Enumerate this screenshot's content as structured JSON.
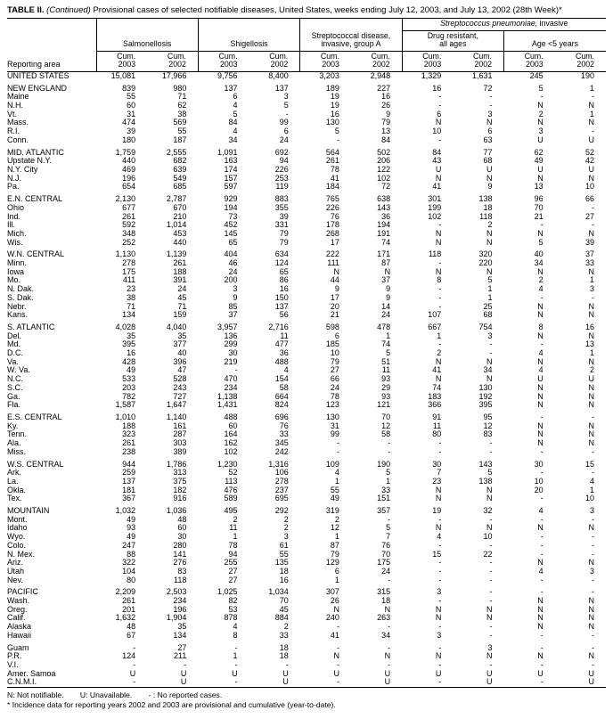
{
  "title": {
    "bold": "TABLE II.",
    "italic": " (Continued)",
    "text": " Provisional cases of selected notifiable diseases, United States, weeks ending July 12, 2003, and July 13, 2002 (28th Week)*"
  },
  "header": {
    "reporting_area": "Reporting area",
    "salmonellosis": "Salmonellosis",
    "shigellosis": "Shigellosis",
    "strep_group_a": "Streptococcal disease,\ninvasive, group A",
    "strep_pneumoniae_italic": "Streptococcus pneumoniae,",
    "strep_pneumoniae_rest": " invasive",
    "drug_resistant": "Drug resistant,\nall ages",
    "age_under_5": "Age <5 years",
    "cum_label": "Cum.",
    "years": [
      "2003",
      "2002",
      "2003",
      "2002",
      "2003",
      "2002",
      "2003",
      "2002",
      "2003",
      "2002"
    ]
  },
  "table": {
    "groups": [
      [
        {
          "area": "UNITED STATES",
          "v": [
            "15,081",
            "17,966",
            "9,756",
            "8,400",
            "3,203",
            "2,948",
            "1,329",
            "1,631",
            "245",
            "190"
          ]
        }
      ],
      [
        {
          "area": "NEW ENGLAND",
          "v": [
            "839",
            "980",
            "137",
            "137",
            "189",
            "227",
            "16",
            "72",
            "5",
            "1"
          ]
        },
        {
          "area": "Maine",
          "v": [
            "55",
            "71",
            "6",
            "3",
            "19",
            "16",
            "-",
            "-",
            "-",
            "-"
          ]
        },
        {
          "area": "N.H.",
          "v": [
            "60",
            "62",
            "4",
            "5",
            "19",
            "26",
            "-",
            "-",
            "N",
            "N"
          ]
        },
        {
          "area": "Vt.",
          "v": [
            "31",
            "38",
            "5",
            "-",
            "16",
            "9",
            "6",
            "3",
            "2",
            "1"
          ]
        },
        {
          "area": "Mass.",
          "v": [
            "474",
            "569",
            "84",
            "99",
            "130",
            "79",
            "N",
            "N",
            "N",
            "N"
          ]
        },
        {
          "area": "R.I.",
          "v": [
            "39",
            "55",
            "4",
            "6",
            "5",
            "13",
            "10",
            "6",
            "3",
            "-"
          ]
        },
        {
          "area": "Conn.",
          "v": [
            "180",
            "187",
            "34",
            "24",
            "-",
            "84",
            "-",
            "63",
            "U",
            "U"
          ]
        }
      ],
      [
        {
          "area": "MID. ATLANTIC",
          "v": [
            "1,759",
            "2,555",
            "1,091",
            "692",
            "564",
            "502",
            "84",
            "77",
            "62",
            "52"
          ]
        },
        {
          "area": "Upstate N.Y.",
          "v": [
            "440",
            "682",
            "163",
            "94",
            "261",
            "206",
            "43",
            "68",
            "49",
            "42"
          ]
        },
        {
          "area": "N.Y. City",
          "v": [
            "469",
            "639",
            "174",
            "226",
            "78",
            "122",
            "U",
            "U",
            "U",
            "U"
          ]
        },
        {
          "area": "N.J.",
          "v": [
            "196",
            "549",
            "157",
            "253",
            "41",
            "102",
            "N",
            "N",
            "N",
            "N"
          ]
        },
        {
          "area": "Pa.",
          "v": [
            "654",
            "685",
            "597",
            "119",
            "184",
            "72",
            "41",
            "9",
            "13",
            "10"
          ]
        }
      ],
      [
        {
          "area": "E.N. CENTRAL",
          "v": [
            "2,130",
            "2,787",
            "929",
            "883",
            "765",
            "638",
            "301",
            "138",
            "96",
            "66"
          ]
        },
        {
          "area": "Ohio",
          "v": [
            "677",
            "670",
            "194",
            "355",
            "226",
            "143",
            "199",
            "18",
            "70",
            "-"
          ]
        },
        {
          "area": "Ind.",
          "v": [
            "261",
            "210",
            "73",
            "39",
            "76",
            "36",
            "102",
            "118",
            "21",
            "27"
          ]
        },
        {
          "area": "Ill.",
          "v": [
            "592",
            "1,014",
            "452",
            "331",
            "178",
            "194",
            "-",
            "2",
            "-",
            "-"
          ]
        },
        {
          "area": "Mich.",
          "v": [
            "348",
            "453",
            "145",
            "79",
            "268",
            "191",
            "N",
            "N",
            "N",
            "N"
          ]
        },
        {
          "area": "Wis.",
          "v": [
            "252",
            "440",
            "65",
            "79",
            "17",
            "74",
            "N",
            "N",
            "5",
            "39"
          ]
        }
      ],
      [
        {
          "area": "W.N. CENTRAL",
          "v": [
            "1,130",
            "1,139",
            "404",
            "634",
            "222",
            "171",
            "118",
            "320",
            "40",
            "37"
          ]
        },
        {
          "area": "Minn.",
          "v": [
            "278",
            "261",
            "46",
            "124",
            "111",
            "87",
            "-",
            "220",
            "34",
            "33"
          ]
        },
        {
          "area": "Iowa",
          "v": [
            "175",
            "188",
            "24",
            "65",
            "N",
            "N",
            "N",
            "N",
            "N",
            "N"
          ]
        },
        {
          "area": "Mo.",
          "v": [
            "411",
            "391",
            "200",
            "86",
            "44",
            "37",
            "8",
            "5",
            "2",
            "1"
          ]
        },
        {
          "area": "N. Dak.",
          "v": [
            "23",
            "24",
            "3",
            "16",
            "9",
            "9",
            "-",
            "1",
            "4",
            "3"
          ]
        },
        {
          "area": "S. Dak.",
          "v": [
            "38",
            "45",
            "9",
            "150",
            "17",
            "9",
            "-",
            "1",
            "-",
            "-"
          ]
        },
        {
          "area": "Nebr.",
          "v": [
            "71",
            "71",
            "85",
            "137",
            "20",
            "14",
            "-",
            "25",
            "N",
            "N"
          ]
        },
        {
          "area": "Kans.",
          "v": [
            "134",
            "159",
            "37",
            "56",
            "21",
            "24",
            "107",
            "68",
            "N",
            "N"
          ]
        }
      ],
      [
        {
          "area": "S. ATLANTIC",
          "v": [
            "4,028",
            "4,040",
            "3,957",
            "2,716",
            "598",
            "478",
            "667",
            "754",
            "8",
            "16"
          ]
        },
        {
          "area": "Del.",
          "v": [
            "35",
            "35",
            "136",
            "11",
            "6",
            "1",
            "1",
            "3",
            "N",
            "N"
          ]
        },
        {
          "area": "Md.",
          "v": [
            "395",
            "377",
            "299",
            "477",
            "185",
            "74",
            "-",
            "-",
            "-",
            "13"
          ]
        },
        {
          "area": "D.C.",
          "v": [
            "16",
            "40",
            "30",
            "36",
            "10",
            "5",
            "2",
            "-",
            "4",
            "1"
          ]
        },
        {
          "area": "Va.",
          "v": [
            "428",
            "396",
            "219",
            "488",
            "79",
            "51",
            "N",
            "N",
            "N",
            "N"
          ]
        },
        {
          "area": "W. Va.",
          "v": [
            "49",
            "47",
            "-",
            "4",
            "27",
            "11",
            "41",
            "34",
            "4",
            "2"
          ]
        },
        {
          "area": "N.C.",
          "v": [
            "533",
            "528",
            "470",
            "154",
            "66",
            "93",
            "N",
            "N",
            "U",
            "U"
          ]
        },
        {
          "area": "S.C.",
          "v": [
            "203",
            "243",
            "234",
            "58",
            "24",
            "29",
            "74",
            "130",
            "N",
            "N"
          ]
        },
        {
          "area": "Ga.",
          "v": [
            "782",
            "727",
            "1,138",
            "664",
            "78",
            "93",
            "183",
            "192",
            "N",
            "N"
          ]
        },
        {
          "area": "Fla.",
          "v": [
            "1,587",
            "1,647",
            "1,431",
            "824",
            "123",
            "121",
            "366",
            "395",
            "N",
            "N"
          ]
        }
      ],
      [
        {
          "area": "E.S. CENTRAL",
          "v": [
            "1,010",
            "1,140",
            "488",
            "696",
            "130",
            "70",
            "91",
            "95",
            "-",
            "-"
          ]
        },
        {
          "area": "Ky.",
          "v": [
            "188",
            "161",
            "60",
            "76",
            "31",
            "12",
            "11",
            "12",
            "N",
            "N"
          ]
        },
        {
          "area": "Tenn.",
          "v": [
            "323",
            "287",
            "164",
            "33",
            "99",
            "58",
            "80",
            "83",
            "N",
            "N"
          ]
        },
        {
          "area": "Ala.",
          "v": [
            "261",
            "303",
            "162",
            "345",
            "-",
            "-",
            "-",
            "-",
            "N",
            "N"
          ]
        },
        {
          "area": "Miss.",
          "v": [
            "238",
            "389",
            "102",
            "242",
            "-",
            "-",
            "-",
            "-",
            "-",
            "-"
          ]
        }
      ],
      [
        {
          "area": "W.S. CENTRAL",
          "v": [
            "944",
            "1,786",
            "1,230",
            "1,316",
            "109",
            "190",
            "30",
            "143",
            "30",
            "15"
          ]
        },
        {
          "area": "Ark.",
          "v": [
            "259",
            "313",
            "52",
            "106",
            "4",
            "5",
            "7",
            "5",
            "-",
            "-"
          ]
        },
        {
          "area": "La.",
          "v": [
            "137",
            "375",
            "113",
            "278",
            "1",
            "1",
            "23",
            "138",
            "10",
            "4"
          ]
        },
        {
          "area": "Okla.",
          "v": [
            "181",
            "182",
            "476",
            "237",
            "55",
            "33",
            "N",
            "N",
            "20",
            "1"
          ]
        },
        {
          "area": "Tex.",
          "v": [
            "367",
            "916",
            "589",
            "695",
            "49",
            "151",
            "N",
            "N",
            "-",
            "10"
          ]
        }
      ],
      [
        {
          "area": "MOUNTAIN",
          "v": [
            "1,032",
            "1,036",
            "495",
            "292",
            "319",
            "357",
            "19",
            "32",
            "4",
            "3"
          ]
        },
        {
          "area": "Mont.",
          "v": [
            "49",
            "48",
            "2",
            "2",
            "2",
            "-",
            "-",
            "-",
            "-",
            "-"
          ]
        },
        {
          "area": "Idaho",
          "v": [
            "93",
            "60",
            "11",
            "2",
            "12",
            "5",
            "N",
            "N",
            "N",
            "N"
          ]
        },
        {
          "area": "Wyo.",
          "v": [
            "49",
            "30",
            "1",
            "3",
            "1",
            "7",
            "4",
            "10",
            "-",
            "-"
          ]
        },
        {
          "area": "Colo.",
          "v": [
            "247",
            "280",
            "78",
            "61",
            "87",
            "76",
            "-",
            "-",
            "-",
            "-"
          ]
        },
        {
          "area": "N. Mex.",
          "v": [
            "88",
            "141",
            "94",
            "55",
            "79",
            "70",
            "15",
            "22",
            "-",
            "-"
          ]
        },
        {
          "area": "Ariz.",
          "v": [
            "322",
            "276",
            "255",
            "135",
            "129",
            "175",
            "-",
            "-",
            "N",
            "N"
          ]
        },
        {
          "area": "Utah",
          "v": [
            "104",
            "83",
            "27",
            "18",
            "6",
            "24",
            "-",
            "-",
            "4",
            "3"
          ]
        },
        {
          "area": "Nev.",
          "v": [
            "80",
            "118",
            "27",
            "16",
            "1",
            "-",
            "-",
            "-",
            "-",
            "-"
          ]
        }
      ],
      [
        {
          "area": "PACIFIC",
          "v": [
            "2,209",
            "2,503",
            "1,025",
            "1,034",
            "307",
            "315",
            "3",
            "-",
            "-",
            "-"
          ]
        },
        {
          "area": "Wash.",
          "v": [
            "261",
            "234",
            "82",
            "70",
            "26",
            "18",
            "-",
            "-",
            "N",
            "N"
          ]
        },
        {
          "area": "Oreg.",
          "v": [
            "201",
            "196",
            "53",
            "45",
            "N",
            "N",
            "N",
            "N",
            "N",
            "N"
          ]
        },
        {
          "area": "Calif.",
          "v": [
            "1,632",
            "1,904",
            "878",
            "884",
            "240",
            "263",
            "N",
            "N",
            "N",
            "N"
          ]
        },
        {
          "area": "Alaska",
          "v": [
            "48",
            "35",
            "4",
            "2",
            "-",
            "-",
            "-",
            "-",
            "N",
            "N"
          ]
        },
        {
          "area": "Hawaii",
          "v": [
            "67",
            "134",
            "8",
            "33",
            "41",
            "34",
            "3",
            "-",
            "-",
            "-"
          ]
        }
      ],
      [
        {
          "area": "Guam",
          "v": [
            "-",
            "27",
            "-",
            "18",
            "-",
            "-",
            "-",
            "3",
            "-",
            "-"
          ]
        },
        {
          "area": "P.R.",
          "v": [
            "124",
            "211",
            "1",
            "18",
            "N",
            "N",
            "N",
            "N",
            "N",
            "N"
          ]
        },
        {
          "area": "V.I.",
          "v": [
            "-",
            "-",
            "-",
            "-",
            "-",
            "-",
            "-",
            "-",
            "-",
            "-"
          ]
        },
        {
          "area": "Amer. Samoa",
          "v": [
            "U",
            "U",
            "U",
            "U",
            "U",
            "U",
            "U",
            "U",
            "U",
            "U"
          ]
        },
        {
          "area": "C.N.M.I.",
          "v": [
            "-",
            "U",
            "-",
            "U",
            "-",
            "U",
            "-",
            "U",
            "-",
            "U"
          ]
        }
      ]
    ]
  },
  "footnotes": {
    "n": "N: Not notifiable.",
    "u": "U: Unavailable.",
    "dash": "- : No reported cases.",
    "asterisk": "* Incidence data for reporting years 2002 and 2003 are provisional and cumulative (year-to-date)."
  }
}
